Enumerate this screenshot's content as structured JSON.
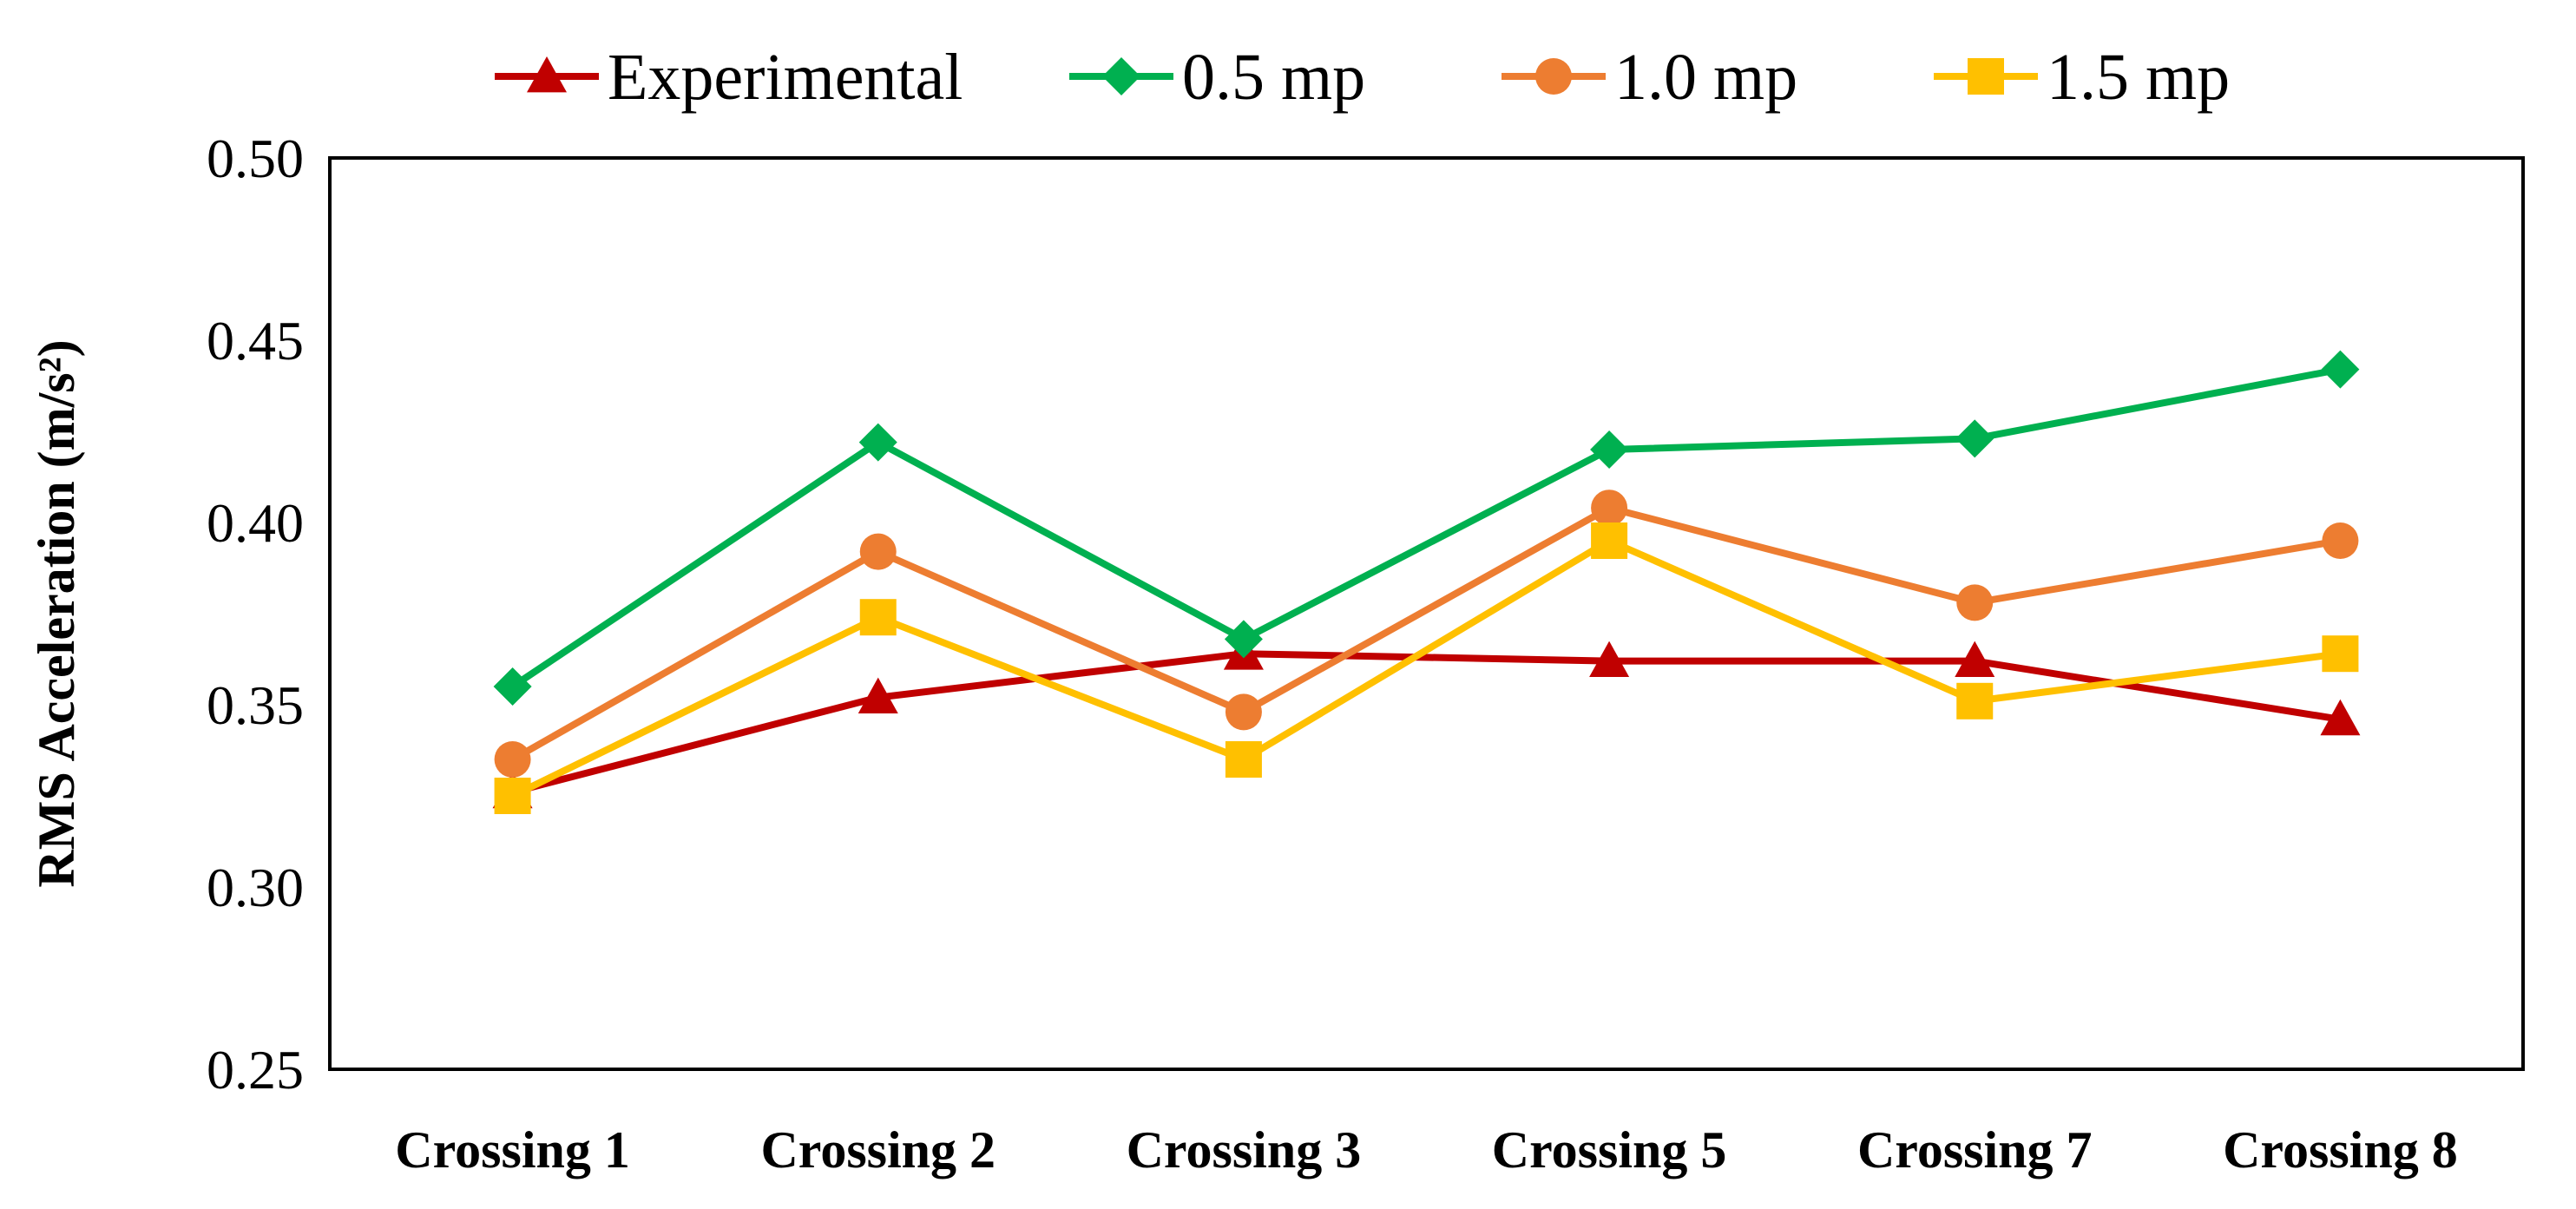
{
  "chart_data": {
    "type": "line",
    "title": "",
    "xlabel": "",
    "ylabel": "RMS Acceleration (m/s²)",
    "categories": [
      "Crossing 1",
      "Crossing 2",
      "Crossing 3",
      "Crossing 5",
      "Crossing 7",
      "Crossing 8"
    ],
    "ylim": [
      0.25,
      0.5
    ],
    "yticks": [
      "0.25",
      "0.30",
      "0.35",
      "0.40",
      "0.45",
      "0.50"
    ],
    "grid": false,
    "legend_position": "top",
    "series": [
      {
        "name": "Experimental",
        "color": "#C00000",
        "marker": "triangle",
        "values": [
          0.326,
          0.352,
          0.364,
          0.362,
          0.362,
          0.346
        ]
      },
      {
        "name": "0.5 mp",
        "color": "#00B050",
        "marker": "diamond",
        "values": [
          0.355,
          0.422,
          0.368,
          0.42,
          0.423,
          0.442
        ]
      },
      {
        "name": "1.0 mp",
        "color": "#ED7D31",
        "marker": "circle",
        "values": [
          0.335,
          0.392,
          0.348,
          0.404,
          0.378,
          0.395
        ]
      },
      {
        "name": "1.5 mp",
        "color": "#FFC000",
        "marker": "square",
        "values": [
          0.325,
          0.374,
          0.335,
          0.395,
          0.351,
          0.364
        ]
      }
    ]
  }
}
